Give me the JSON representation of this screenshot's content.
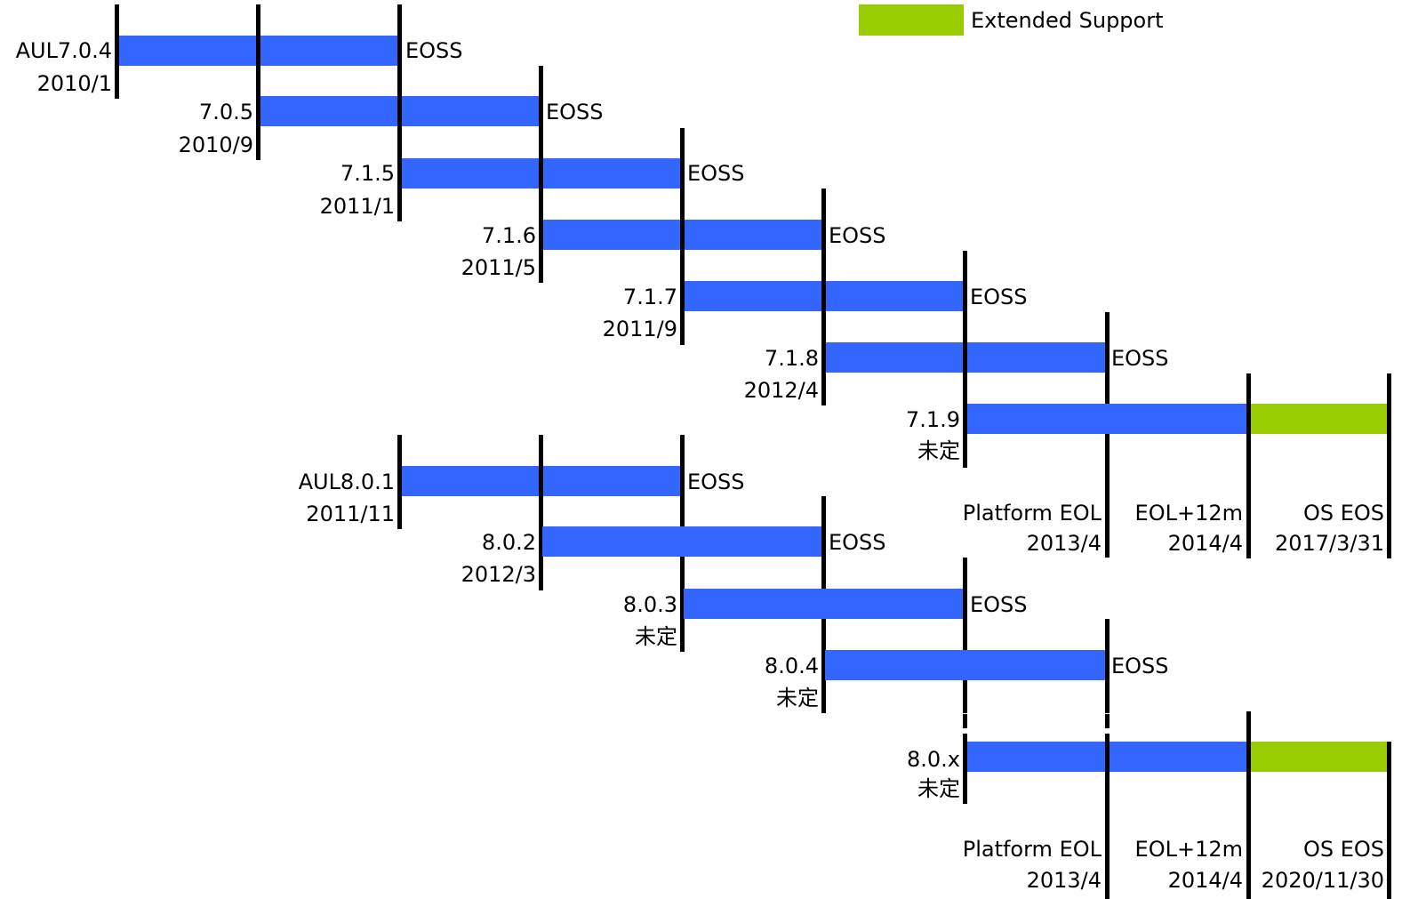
{
  "colors": {
    "bar": "#3366ff",
    "extended": "#99cc00",
    "line": "#000000"
  },
  "legend": {
    "label": "Extended Support"
  },
  "releases": [
    {
      "version": "AUL7.0.4",
      "date": "2010/1",
      "eoss": "EOSS"
    },
    {
      "version": "7.0.5",
      "date": "2010/9",
      "eoss": "EOSS"
    },
    {
      "version": "7.1.5",
      "date": "2011/1",
      "eoss": "EOSS"
    },
    {
      "version": "7.1.6",
      "date": "2011/5",
      "eoss": "EOSS"
    },
    {
      "version": "7.1.7",
      "date": "2011/9",
      "eoss": "EOSS"
    },
    {
      "version": "7.1.8",
      "date": "2012/4",
      "eoss": "EOSS"
    },
    {
      "version": "7.1.9",
      "date": "未定",
      "eoss": ""
    },
    {
      "version": "AUL8.0.1",
      "date": "2011/11",
      "eoss": "EOSS"
    },
    {
      "version": "8.0.2",
      "date": "2012/3",
      "eoss": "EOSS"
    },
    {
      "version": "8.0.3",
      "date": "未定",
      "eoss": "EOSS"
    },
    {
      "version": "8.0.4",
      "date": "未定",
      "eoss": "EOSS"
    },
    {
      "version": "8.0.x",
      "date": "未定",
      "eoss": ""
    }
  ],
  "milestones_7": [
    {
      "name": "Platform EOL",
      "date": "2013/4"
    },
    {
      "name": "EOL+12m",
      "date": "2014/4"
    },
    {
      "name": "OS EOS",
      "date": "2017/3/31"
    }
  ],
  "milestones_8": [
    {
      "name": "Platform EOL",
      "date": "2013/4"
    },
    {
      "name": "EOL+12m",
      "date": "2014/4"
    },
    {
      "name": "OS EOS",
      "date": "2020/11/30"
    }
  ]
}
